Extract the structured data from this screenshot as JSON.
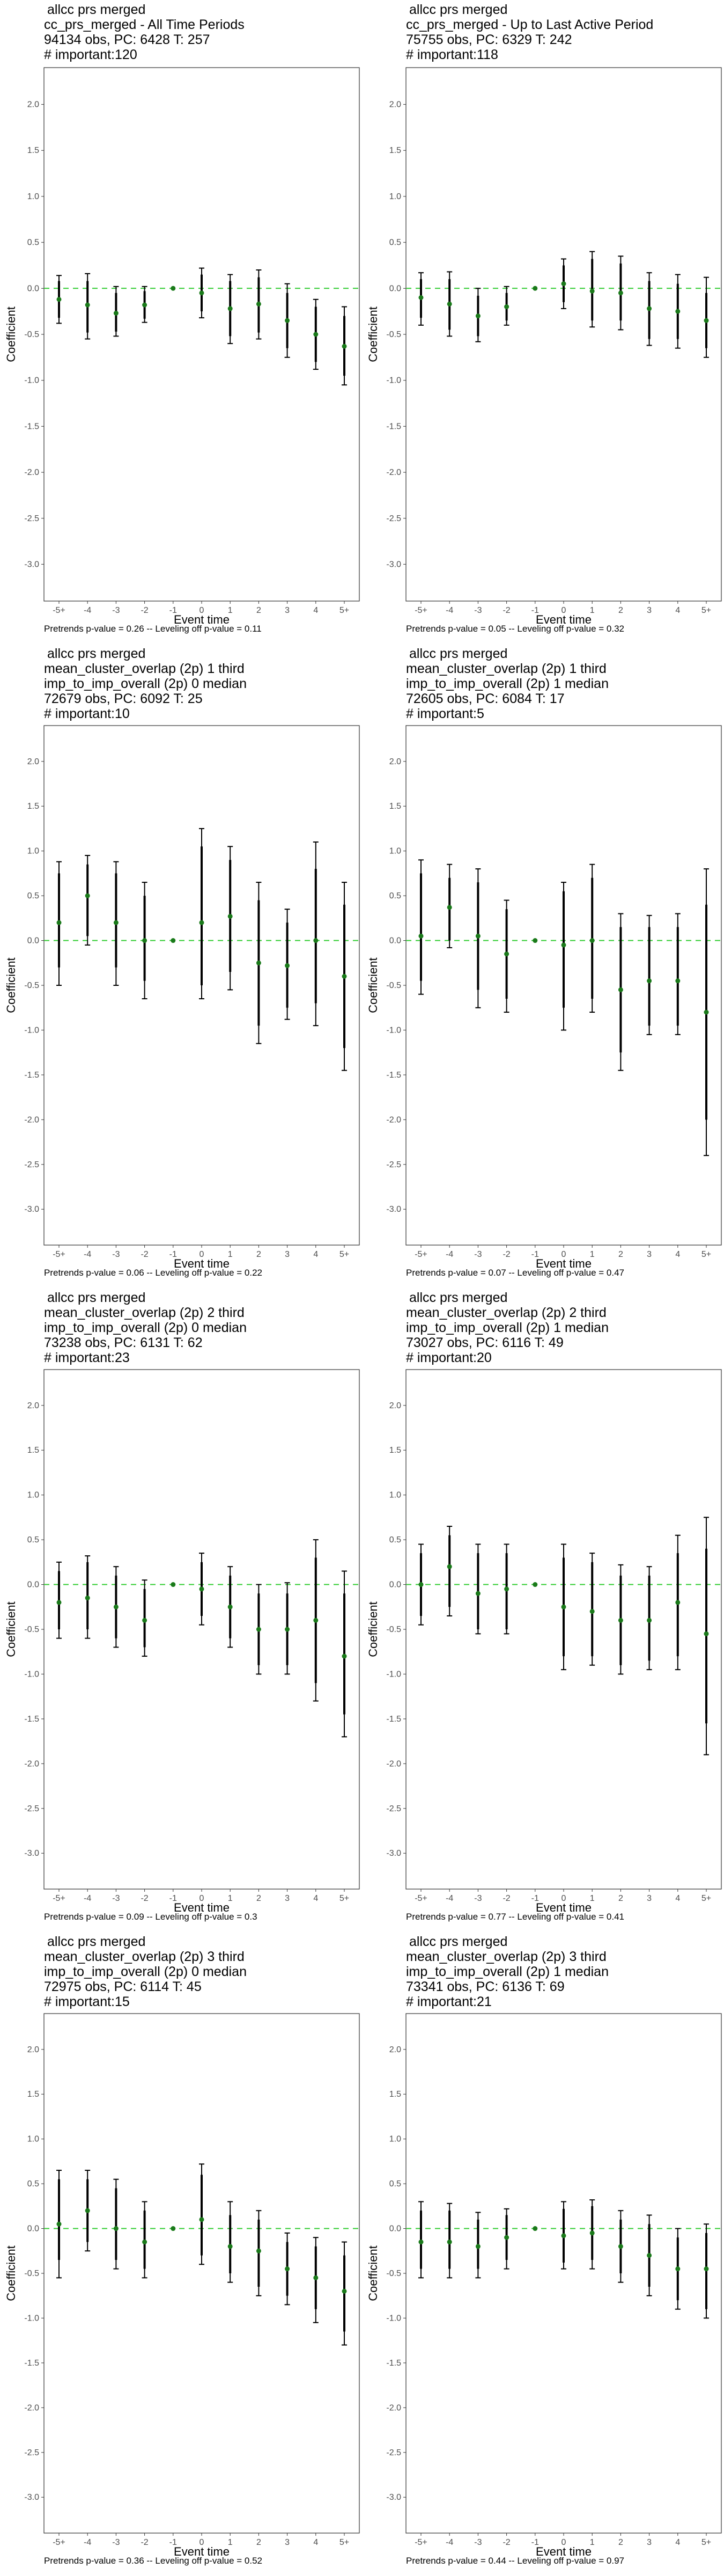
{
  "chart_data": [
    {
      "type": "scatter",
      "title_lines": [
        "allcc prs merged",
        "cc_prs_merged - All Time Periods",
        "94134 obs, PC: 6428 T: 257",
        "# important:120"
      ],
      "xlabel": "Event time",
      "ylabel": "Coefficient",
      "categories": [
        "-5+",
        "-4",
        "-3",
        "-2",
        "-1",
        "0",
        "1",
        "2",
        "3",
        "4",
        "5+"
      ],
      "yticks": [
        "2.0",
        "1.5",
        "1.0",
        "0.5",
        "0.0",
        "-0.5",
        "-1.0",
        "-1.5",
        "-2.0",
        "-2.5",
        "-3.0"
      ],
      "ylim": [
        -3.4,
        2.4
      ],
      "points": [
        {
          "y": -0.12,
          "lo90": -0.32,
          "hi90": 0.08,
          "lo95": -0.38,
          "hi95": 0.14
        },
        {
          "y": -0.18,
          "lo90": -0.48,
          "hi90": 0.08,
          "lo95": -0.55,
          "hi95": 0.16
        },
        {
          "y": -0.27,
          "lo90": -0.47,
          "hi90": -0.05,
          "lo95": -0.52,
          "hi95": 0.02
        },
        {
          "y": -0.18,
          "lo90": -0.33,
          "hi90": -0.03,
          "lo95": -0.37,
          "hi95": 0.02
        },
        {
          "y": 0.0,
          "lo90": 0.0,
          "hi90": 0.0,
          "lo95": 0.0,
          "hi95": 0.0
        },
        {
          "y": -0.05,
          "lo90": -0.25,
          "hi90": 0.15,
          "lo95": -0.32,
          "hi95": 0.22
        },
        {
          "y": -0.22,
          "lo90": -0.52,
          "hi90": 0.08,
          "lo95": -0.6,
          "hi95": 0.15
        },
        {
          "y": -0.17,
          "lo90": -0.48,
          "hi90": 0.12,
          "lo95": -0.55,
          "hi95": 0.2
        },
        {
          "y": -0.35,
          "lo90": -0.65,
          "hi90": -0.05,
          "lo95": -0.75,
          "hi95": 0.05
        },
        {
          "y": -0.5,
          "lo90": -0.8,
          "hi90": -0.2,
          "lo95": -0.88,
          "hi95": -0.12
        },
        {
          "y": -0.63,
          "lo90": -0.95,
          "hi90": -0.3,
          "lo95": -1.05,
          "hi95": -0.2
        }
      ],
      "footer": "Pretrends p-value = 0.26 -- Leveling off p-value = 0.11"
    },
    {
      "type": "scatter",
      "title_lines": [
        "allcc prs merged",
        "cc_prs_merged - Up to Last Active Period",
        "75755 obs, PC: 6329 T: 242",
        "# important:118"
      ],
      "xlabel": "Event time",
      "ylabel": "Coefficient",
      "categories": [
        "-5+",
        "-4",
        "-3",
        "-2",
        "-1",
        "0",
        "1",
        "2",
        "3",
        "4",
        "5+"
      ],
      "yticks": [
        "2.0",
        "1.5",
        "1.0",
        "0.5",
        "0.0",
        "-0.5",
        "-1.0",
        "-1.5",
        "-2.0",
        "-2.5",
        "-3.0"
      ],
      "ylim": [
        -3.4,
        2.4
      ],
      "points": [
        {
          "y": -0.1,
          "lo90": -0.32,
          "hi90": 0.1,
          "lo95": -0.4,
          "hi95": 0.17
        },
        {
          "y": -0.17,
          "lo90": -0.45,
          "hi90": 0.1,
          "lo95": -0.52,
          "hi95": 0.18
        },
        {
          "y": -0.3,
          "lo90": -0.52,
          "hi90": -0.08,
          "lo95": -0.58,
          "hi95": 0.0
        },
        {
          "y": -0.2,
          "lo90": -0.35,
          "hi90": -0.05,
          "lo95": -0.4,
          "hi95": 0.02
        },
        {
          "y": 0.0,
          "lo90": 0.0,
          "hi90": 0.0,
          "lo95": 0.0,
          "hi95": 0.0
        },
        {
          "y": 0.05,
          "lo90": -0.15,
          "hi90": 0.25,
          "lo95": -0.22,
          "hi95": 0.32
        },
        {
          "y": -0.03,
          "lo90": -0.35,
          "hi90": 0.32,
          "lo95": -0.42,
          "hi95": 0.4
        },
        {
          "y": -0.05,
          "lo90": -0.35,
          "hi90": 0.27,
          "lo95": -0.45,
          "hi95": 0.35
        },
        {
          "y": -0.22,
          "lo90": -0.55,
          "hi90": 0.08,
          "lo95": -0.62,
          "hi95": 0.17
        },
        {
          "y": -0.25,
          "lo90": -0.55,
          "hi90": 0.05,
          "lo95": -0.65,
          "hi95": 0.15
        },
        {
          "y": -0.35,
          "lo90": -0.65,
          "hi90": -0.05,
          "lo95": -0.75,
          "hi95": 0.12
        }
      ],
      "footer": "Pretrends p-value = 0.05 -- Leveling off p-value = 0.32"
    },
    {
      "type": "scatter",
      "title_lines": [
        "allcc prs merged",
        "mean_cluster_overlap (2p) 1 third",
        "imp_to_imp_overall (2p) 0 median",
        "72679 obs, PC: 6092 T: 25",
        "# important:10"
      ],
      "xlabel": "Event time",
      "ylabel": "Coefficient",
      "categories": [
        "-5+",
        "-4",
        "-3",
        "-2",
        "-1",
        "0",
        "1",
        "2",
        "3",
        "4",
        "5+"
      ],
      "yticks": [
        "2.0",
        "1.5",
        "1.0",
        "0.5",
        "0.0",
        "-0.5",
        "-1.0",
        "-1.5",
        "-2.0",
        "-2.5",
        "-3.0"
      ],
      "ylim": [
        -3.4,
        2.4
      ],
      "points": [
        {
          "y": 0.2,
          "lo90": -0.3,
          "hi90": 0.75,
          "lo95": -0.5,
          "hi95": 0.88
        },
        {
          "y": 0.5,
          "lo90": 0.05,
          "hi90": 0.85,
          "lo95": -0.05,
          "hi95": 0.95
        },
        {
          "y": 0.2,
          "lo90": -0.3,
          "hi90": 0.75,
          "lo95": -0.5,
          "hi95": 0.88
        },
        {
          "y": 0.0,
          "lo90": -0.45,
          "hi90": 0.5,
          "lo95": -0.65,
          "hi95": 0.65
        },
        {
          "y": 0.0,
          "lo90": 0.0,
          "hi90": 0.0,
          "lo95": 0.0,
          "hi95": 0.0
        },
        {
          "y": 0.2,
          "lo90": -0.5,
          "hi90": 1.05,
          "lo95": -0.65,
          "hi95": 1.25
        },
        {
          "y": 0.27,
          "lo90": -0.35,
          "hi90": 0.9,
          "lo95": -0.55,
          "hi95": 1.05
        },
        {
          "y": -0.25,
          "lo90": -0.95,
          "hi90": 0.45,
          "lo95": -1.15,
          "hi95": 0.65
        },
        {
          "y": -0.28,
          "lo90": -0.75,
          "hi90": 0.2,
          "lo95": -0.88,
          "hi95": 0.35
        },
        {
          "y": 0.0,
          "lo90": -0.7,
          "hi90": 0.8,
          "lo95": -0.95,
          "hi95": 1.1
        },
        {
          "y": -0.4,
          "lo90": -1.2,
          "hi90": 0.4,
          "lo95": -1.45,
          "hi95": 0.65
        }
      ],
      "footer": "Pretrends p-value = 0.06 -- Leveling off p-value = 0.22"
    },
    {
      "type": "scatter",
      "title_lines": [
        "allcc prs merged",
        "mean_cluster_overlap (2p) 1 third",
        "imp_to_imp_overall (2p) 1 median",
        "72605 obs, PC: 6084 T: 17",
        "# important:5"
      ],
      "xlabel": "Event time",
      "ylabel": "Coefficient",
      "categories": [
        "-5+",
        "-4",
        "-3",
        "-2",
        "-1",
        "0",
        "1",
        "2",
        "3",
        "4",
        "5+"
      ],
      "yticks": [
        "2.0",
        "1.5",
        "1.0",
        "0.5",
        "0.0",
        "-0.5",
        "-1.0",
        "-1.5",
        "-2.0",
        "-2.5",
        "-3.0"
      ],
      "ylim": [
        -3.4,
        2.4
      ],
      "points": [
        {
          "y": 0.05,
          "lo90": -0.45,
          "hi90": 0.75,
          "lo95": -0.6,
          "hi95": 0.9
        },
        {
          "y": 0.37,
          "lo90": 0.0,
          "hi90": 0.7,
          "lo95": -0.08,
          "hi95": 0.85
        },
        {
          "y": 0.05,
          "lo90": -0.55,
          "hi90": 0.65,
          "lo95": -0.75,
          "hi95": 0.8
        },
        {
          "y": -0.15,
          "lo90": -0.65,
          "hi90": 0.35,
          "lo95": -0.8,
          "hi95": 0.45
        },
        {
          "y": 0.0,
          "lo90": 0.0,
          "hi90": 0.0,
          "lo95": 0.0,
          "hi95": 0.0
        },
        {
          "y": -0.05,
          "lo90": -0.75,
          "hi90": 0.55,
          "lo95": -1.0,
          "hi95": 0.65
        },
        {
          "y": 0.0,
          "lo90": -0.65,
          "hi90": 0.7,
          "lo95": -0.8,
          "hi95": 0.85
        },
        {
          "y": -0.55,
          "lo90": -1.25,
          "hi90": 0.15,
          "lo95": -1.45,
          "hi95": 0.3
        },
        {
          "y": -0.45,
          "lo90": -0.95,
          "hi90": 0.15,
          "lo95": -1.05,
          "hi95": 0.28
        },
        {
          "y": -0.45,
          "lo90": -0.95,
          "hi90": 0.15,
          "lo95": -1.05,
          "hi95": 0.3
        },
        {
          "y": -0.8,
          "lo90": -2.0,
          "hi90": 0.4,
          "lo95": -2.4,
          "hi95": 0.8
        }
      ],
      "footer": "Pretrends p-value = 0.07 -- Leveling off p-value = 0.47"
    },
    {
      "type": "scatter",
      "title_lines": [
        "allcc prs merged",
        "mean_cluster_overlap (2p) 2 third",
        "imp_to_imp_overall (2p) 0 median",
        "73238 obs, PC: 6131 T: 62",
        "# important:23"
      ],
      "xlabel": "Event time",
      "ylabel": "Coefficient",
      "categories": [
        "-5+",
        "-4",
        "-3",
        "-2",
        "-1",
        "0",
        "1",
        "2",
        "3",
        "4",
        "5+"
      ],
      "yticks": [
        "2.0",
        "1.5",
        "1.0",
        "0.5",
        "0.0",
        "-0.5",
        "-1.0",
        "-1.5",
        "-2.0",
        "-2.5",
        "-3.0"
      ],
      "ylim": [
        -3.4,
        2.4
      ],
      "points": [
        {
          "y": -0.2,
          "lo90": -0.5,
          "hi90": 0.15,
          "lo95": -0.6,
          "hi95": 0.25
        },
        {
          "y": -0.15,
          "lo90": -0.5,
          "hi90": 0.25,
          "lo95": -0.6,
          "hi95": 0.32
        },
        {
          "y": -0.25,
          "lo90": -0.6,
          "hi90": 0.1,
          "lo95": -0.7,
          "hi95": 0.2
        },
        {
          "y": -0.4,
          "lo90": -0.7,
          "hi90": -0.05,
          "lo95": -0.8,
          "hi95": 0.05
        },
        {
          "y": 0.0,
          "lo90": 0.0,
          "hi90": 0.0,
          "lo95": 0.0,
          "hi95": 0.0
        },
        {
          "y": -0.05,
          "lo90": -0.35,
          "hi90": 0.25,
          "lo95": -0.45,
          "hi95": 0.35
        },
        {
          "y": -0.25,
          "lo90": -0.6,
          "hi90": 0.1,
          "lo95": -0.7,
          "hi95": 0.2
        },
        {
          "y": -0.5,
          "lo90": -0.9,
          "hi90": -0.1,
          "lo95": -1.0,
          "hi95": 0.0
        },
        {
          "y": -0.5,
          "lo90": -0.9,
          "hi90": -0.1,
          "lo95": -1.0,
          "hi95": 0.02
        },
        {
          "y": -0.4,
          "lo90": -1.1,
          "hi90": 0.3,
          "lo95": -1.3,
          "hi95": 0.5
        },
        {
          "y": -0.8,
          "lo90": -1.45,
          "hi90": -0.1,
          "lo95": -1.7,
          "hi95": 0.15
        }
      ],
      "footer": "Pretrends p-value = 0.09 -- Leveling off p-value = 0.3"
    },
    {
      "type": "scatter",
      "title_lines": [
        "allcc prs merged",
        "mean_cluster_overlap (2p) 2 third",
        "imp_to_imp_overall (2p) 1 median",
        "73027 obs, PC: 6116 T: 49",
        "# important:20"
      ],
      "xlabel": "Event time",
      "ylabel": "Coefficient",
      "categories": [
        "-5+",
        "-4",
        "-3",
        "-2",
        "-1",
        "0",
        "1",
        "2",
        "3",
        "4",
        "5+"
      ],
      "yticks": [
        "2.0",
        "1.5",
        "1.0",
        "0.5",
        "0.0",
        "-0.5",
        "-1.0",
        "-1.5",
        "-2.0",
        "-2.5",
        "-3.0"
      ],
      "ylim": [
        -3.4,
        2.4
      ],
      "points": [
        {
          "y": 0.0,
          "lo90": -0.35,
          "hi90": 0.35,
          "lo95": -0.45,
          "hi95": 0.45
        },
        {
          "y": 0.2,
          "lo90": -0.25,
          "hi90": 0.55,
          "lo95": -0.35,
          "hi95": 0.65
        },
        {
          "y": -0.1,
          "lo90": -0.5,
          "hi90": 0.35,
          "lo95": -0.55,
          "hi95": 0.45
        },
        {
          "y": -0.05,
          "lo90": -0.5,
          "hi90": 0.35,
          "lo95": -0.55,
          "hi95": 0.45
        },
        {
          "y": 0.0,
          "lo90": 0.0,
          "hi90": 0.0,
          "lo95": 0.0,
          "hi95": 0.0
        },
        {
          "y": -0.25,
          "lo90": -0.8,
          "hi90": 0.3,
          "lo95": -0.95,
          "hi95": 0.45
        },
        {
          "y": -0.3,
          "lo90": -0.8,
          "hi90": 0.25,
          "lo95": -0.9,
          "hi95": 0.35
        },
        {
          "y": -0.4,
          "lo90": -0.9,
          "hi90": 0.1,
          "lo95": -1.0,
          "hi95": 0.22
        },
        {
          "y": -0.4,
          "lo90": -0.85,
          "hi90": 0.1,
          "lo95": -0.95,
          "hi95": 0.2
        },
        {
          "y": -0.2,
          "lo90": -0.8,
          "hi90": 0.35,
          "lo95": -0.95,
          "hi95": 0.55
        },
        {
          "y": -0.55,
          "lo90": -1.55,
          "hi90": 0.4,
          "lo95": -1.9,
          "hi95": 0.75
        }
      ],
      "footer": "Pretrends p-value = 0.77 -- Leveling off p-value = 0.41"
    },
    {
      "type": "scatter",
      "title_lines": [
        "allcc prs merged",
        "mean_cluster_overlap (2p) 3 third",
        "imp_to_imp_overall (2p) 0 median",
        "72975 obs, PC: 6114 T: 45",
        "# important:15"
      ],
      "xlabel": "Event time",
      "ylabel": "Coefficient",
      "categories": [
        "-5+",
        "-4",
        "-3",
        "-2",
        "-1",
        "0",
        "1",
        "2",
        "3",
        "4",
        "5+"
      ],
      "yticks": [
        "2.0",
        "1.5",
        "1.0",
        "0.5",
        "0.0",
        "-0.5",
        "-1.0",
        "-1.5",
        "-2.0",
        "-2.5",
        "-3.0"
      ],
      "ylim": [
        -3.4,
        2.4
      ],
      "points": [
        {
          "y": 0.05,
          "lo90": -0.35,
          "hi90": 0.55,
          "lo95": -0.55,
          "hi95": 0.65
        },
        {
          "y": 0.2,
          "lo90": -0.15,
          "hi90": 0.55,
          "lo95": -0.25,
          "hi95": 0.65
        },
        {
          "y": 0.0,
          "lo90": -0.35,
          "hi90": 0.45,
          "lo95": -0.45,
          "hi95": 0.55
        },
        {
          "y": -0.15,
          "lo90": -0.45,
          "hi90": 0.2,
          "lo95": -0.55,
          "hi95": 0.3
        },
        {
          "y": 0.0,
          "lo90": 0.0,
          "hi90": 0.0,
          "lo95": 0.0,
          "hi95": 0.0
        },
        {
          "y": 0.1,
          "lo90": -0.3,
          "hi90": 0.6,
          "lo95": -0.4,
          "hi95": 0.72
        },
        {
          "y": -0.2,
          "lo90": -0.5,
          "hi90": 0.15,
          "lo95": -0.6,
          "hi95": 0.3
        },
        {
          "y": -0.25,
          "lo90": -0.65,
          "hi90": 0.1,
          "lo95": -0.75,
          "hi95": 0.2
        },
        {
          "y": -0.45,
          "lo90": -0.75,
          "hi90": -0.15,
          "lo95": -0.85,
          "hi95": -0.05
        },
        {
          "y": -0.55,
          "lo90": -0.9,
          "hi90": -0.2,
          "lo95": -1.05,
          "hi95": -0.1
        },
        {
          "y": -0.7,
          "lo90": -1.15,
          "hi90": -0.3,
          "lo95": -1.3,
          "hi95": -0.15
        }
      ],
      "footer": "Pretrends p-value = 0.36 -- Leveling off p-value = 0.52"
    },
    {
      "type": "scatter",
      "title_lines": [
        "allcc prs merged",
        "mean_cluster_overlap (2p) 3 third",
        "imp_to_imp_overall (2p) 1 median",
        "73341 obs, PC: 6136 T: 69",
        "# important:21"
      ],
      "xlabel": "Event time",
      "ylabel": "Coefficient",
      "categories": [
        "-5+",
        "-4",
        "-3",
        "-2",
        "-1",
        "0",
        "1",
        "2",
        "3",
        "4",
        "5+"
      ],
      "yticks": [
        "2.0",
        "1.5",
        "1.0",
        "0.5",
        "0.0",
        "-0.5",
        "-1.0",
        "-1.5",
        "-2.0",
        "-2.5",
        "-3.0"
      ],
      "ylim": [
        -3.4,
        2.4
      ],
      "points": [
        {
          "y": -0.15,
          "lo90": -0.45,
          "hi90": 0.2,
          "lo95": -0.55,
          "hi95": 0.3
        },
        {
          "y": -0.15,
          "lo90": -0.45,
          "hi90": 0.2,
          "lo95": -0.55,
          "hi95": 0.28
        },
        {
          "y": -0.2,
          "lo90": -0.45,
          "hi90": 0.1,
          "lo95": -0.55,
          "hi95": 0.18
        },
        {
          "y": -0.1,
          "lo90": -0.35,
          "hi90": 0.15,
          "lo95": -0.45,
          "hi95": 0.22
        },
        {
          "y": 0.0,
          "lo90": 0.0,
          "hi90": 0.0,
          "lo95": 0.0,
          "hi95": 0.0
        },
        {
          "y": -0.08,
          "lo90": -0.38,
          "hi90": 0.22,
          "lo95": -0.45,
          "hi95": 0.3
        },
        {
          "y": -0.05,
          "lo90": -0.35,
          "hi90": 0.25,
          "lo95": -0.45,
          "hi95": 0.32
        },
        {
          "y": -0.2,
          "lo90": -0.5,
          "hi90": 0.1,
          "lo95": -0.6,
          "hi95": 0.2
        },
        {
          "y": -0.3,
          "lo90": -0.65,
          "hi90": 0.05,
          "lo95": -0.75,
          "hi95": 0.15
        },
        {
          "y": -0.45,
          "lo90": -0.8,
          "hi90": -0.1,
          "lo95": -0.9,
          "hi95": 0.0
        },
        {
          "y": -0.45,
          "lo90": -0.9,
          "hi90": -0.05,
          "lo95": -1.0,
          "hi95": 0.05
        }
      ],
      "footer": "Pretrends p-value = 0.44 -- Leveling off p-value = 0.97"
    }
  ]
}
